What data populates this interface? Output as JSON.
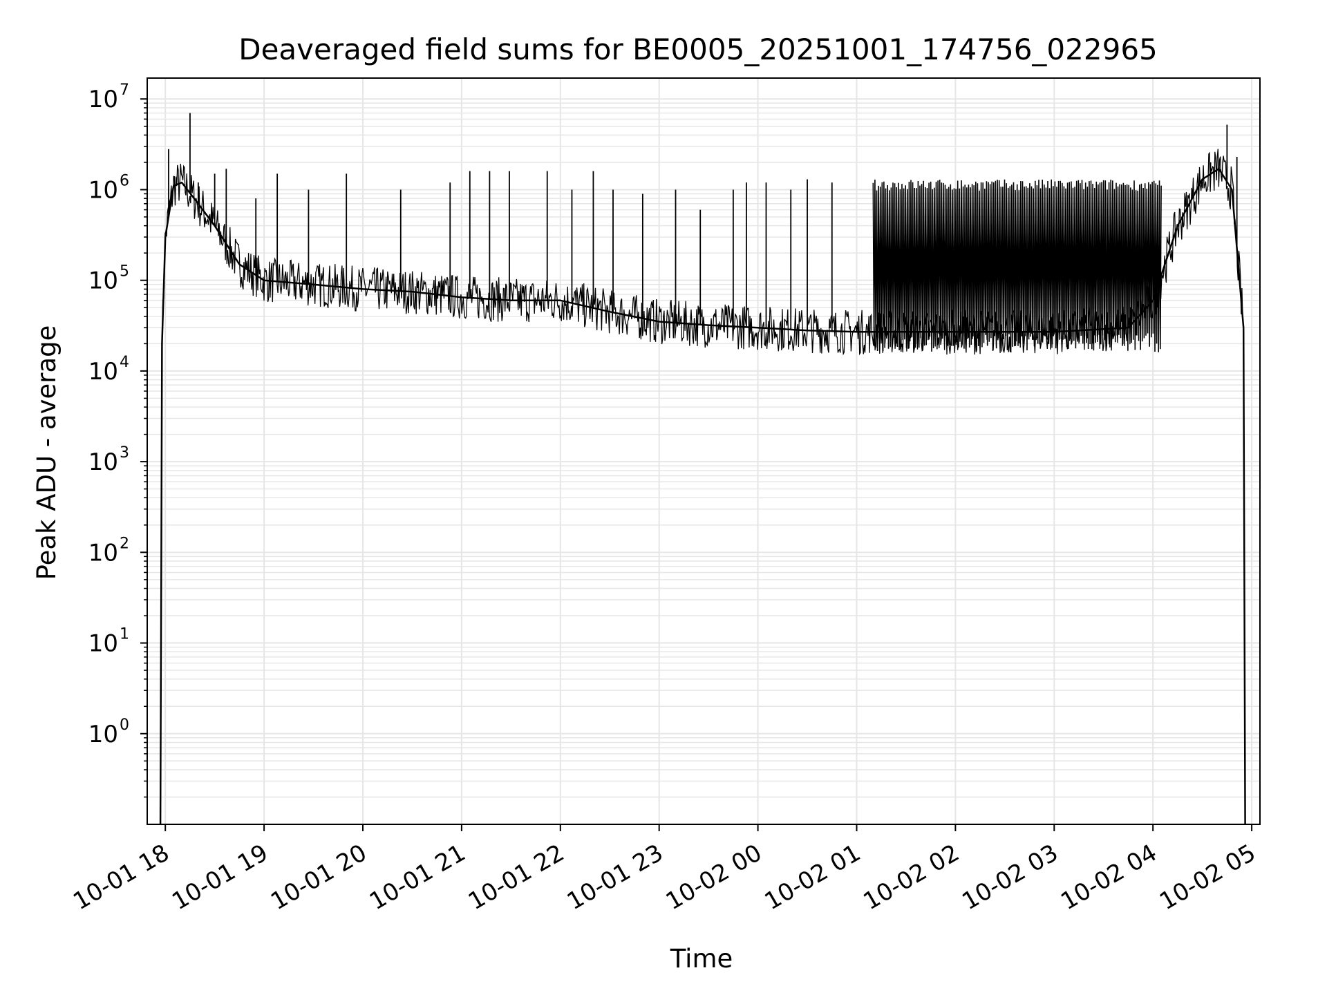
{
  "chart_data": {
    "type": "line",
    "title": "Deaveraged field sums for BE0005_20251001_174756_022965",
    "xlabel": "Time",
    "ylabel": "Peak ADU - average",
    "yscale": "log",
    "ylim": [
      0.1,
      17000000
    ],
    "xlim": [
      "2025-10-01 17:49",
      "2025-10-02 05:05"
    ],
    "grid": true,
    "line_color": "#000000",
    "grid_color": "#e6e6e6",
    "x_ticks": [
      {
        "value": "2025-10-01 18:00",
        "label": "10-01 18"
      },
      {
        "value": "2025-10-01 19:00",
        "label": "10-01 19"
      },
      {
        "value": "2025-10-01 20:00",
        "label": "10-01 20"
      },
      {
        "value": "2025-10-01 21:00",
        "label": "10-01 21"
      },
      {
        "value": "2025-10-01 22:00",
        "label": "10-01 22"
      },
      {
        "value": "2025-10-01 23:00",
        "label": "10-01 23"
      },
      {
        "value": "2025-10-02 00:00",
        "label": "10-02 00"
      },
      {
        "value": "2025-10-02 01:00",
        "label": "10-02 01"
      },
      {
        "value": "2025-10-02 02:00",
        "label": "10-02 02"
      },
      {
        "value": "2025-10-02 03:00",
        "label": "10-02 03"
      },
      {
        "value": "2025-10-02 04:00",
        "label": "10-02 04"
      },
      {
        "value": "2025-10-02 05:00",
        "label": "10-02 05"
      }
    ],
    "y_ticks": [
      {
        "value": 1,
        "base": "10",
        "exp": "0"
      },
      {
        "value": 10,
        "base": "10",
        "exp": "1"
      },
      {
        "value": 100,
        "base": "10",
        "exp": "2"
      },
      {
        "value": 1000,
        "base": "10",
        "exp": "3"
      },
      {
        "value": 10000,
        "base": "10",
        "exp": "4"
      },
      {
        "value": 100000,
        "base": "10",
        "exp": "5"
      },
      {
        "value": 1000000,
        "base": "10",
        "exp": "6"
      },
      {
        "value": 10000000,
        "base": "10",
        "exp": "7"
      }
    ],
    "series": [
      {
        "baseline": [
          [
            "2025-10-01 17:57",
            0.1
          ],
          [
            "2025-10-01 17:58",
            20000
          ],
          [
            "2025-10-01 18:00",
            300000
          ],
          [
            "2025-10-01 18:05",
            1100000
          ],
          [
            "2025-10-01 18:10",
            1200000
          ],
          [
            "2025-10-01 18:20",
            700000
          ],
          [
            "2025-10-01 18:30",
            400000
          ],
          [
            "2025-10-01 18:45",
            150000
          ],
          [
            "2025-10-01 19:00",
            100000
          ],
          [
            "2025-10-01 19:30",
            90000
          ],
          [
            "2025-10-01 20:00",
            80000
          ],
          [
            "2025-10-01 20:30",
            75000
          ],
          [
            "2025-10-01 21:00",
            65000
          ],
          [
            "2025-10-01 21:30",
            60000
          ],
          [
            "2025-10-01 22:00",
            60000
          ],
          [
            "2025-10-01 22:30",
            45000
          ],
          [
            "2025-10-01 23:00",
            35000
          ],
          [
            "2025-10-01 23:30",
            32000
          ],
          [
            "2025-10-02 00:00",
            30000
          ],
          [
            "2025-10-02 00:30",
            28000
          ],
          [
            "2025-10-02 01:00",
            27000
          ],
          [
            "2025-10-02 02:00",
            27000
          ],
          [
            "2025-10-02 03:00",
            27000
          ],
          [
            "2025-10-02 03:45",
            30000
          ],
          [
            "2025-10-02 04:00",
            60000
          ],
          [
            "2025-10-02 04:15",
            400000
          ],
          [
            "2025-10-02 04:30",
            1300000
          ],
          [
            "2025-10-02 04:40",
            1700000
          ],
          [
            "2025-10-02 04:48",
            1000000
          ],
          [
            "2025-10-02 04:55",
            30000
          ],
          [
            "2025-10-02 04:56",
            0.1
          ]
        ],
        "spikes": [
          [
            "2025-10-01 18:02",
            2800000
          ],
          [
            "2025-10-01 18:15",
            7000000
          ],
          [
            "2025-10-01 18:20",
            1200000
          ],
          [
            "2025-10-01 18:30",
            1500000
          ],
          [
            "2025-10-01 18:37",
            1700000
          ],
          [
            "2025-10-01 18:55",
            800000
          ],
          [
            "2025-10-01 19:08",
            1500000
          ],
          [
            "2025-10-01 19:27",
            1000000
          ],
          [
            "2025-10-01 19:50",
            1500000
          ],
          [
            "2025-10-01 20:23",
            1000000
          ],
          [
            "2025-10-01 20:53",
            1200000
          ],
          [
            "2025-10-01 21:05",
            1600000
          ],
          [
            "2025-10-01 21:17",
            1600000
          ],
          [
            "2025-10-01 21:29",
            1600000
          ],
          [
            "2025-10-01 21:52",
            1600000
          ],
          [
            "2025-10-01 22:07",
            1000000
          ],
          [
            "2025-10-01 22:20",
            1600000
          ],
          [
            "2025-10-01 22:32",
            1000000
          ],
          [
            "2025-10-01 22:50",
            900000
          ],
          [
            "2025-10-01 23:10",
            1000000
          ],
          [
            "2025-10-01 23:25",
            600000
          ],
          [
            "2025-10-01 23:45",
            1000000
          ],
          [
            "2025-10-01 23:53",
            1200000
          ],
          [
            "2025-10-02 00:05",
            1200000
          ],
          [
            "2025-10-02 00:20",
            1000000
          ],
          [
            "2025-10-02 00:30",
            1300000
          ],
          [
            "2025-10-02 00:45",
            1200000
          ],
          [
            "2025-10-02 04:35",
            2000000
          ],
          [
            "2025-10-02 04:45",
            5200000
          ],
          [
            "2025-10-02 04:51",
            2300000
          ]
        ],
        "dense_band": {
          "start": "2025-10-02 01:10",
          "end": "2025-10-02 04:05",
          "low": 20000,
          "high": 1300000
        }
      }
    ]
  }
}
